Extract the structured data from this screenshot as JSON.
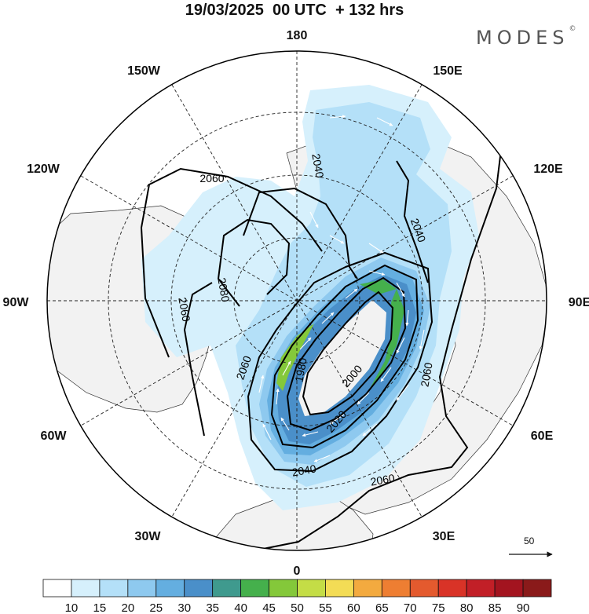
{
  "title": "19/03/2025  00 UTC  + 132 hrs",
  "brand": "MODES",
  "brand_mark": "©",
  "longitude_labels": [
    "180",
    "150E",
    "120E",
    "90E",
    "60E",
    "30E",
    "0",
    "30W",
    "60W",
    "90W",
    "120W",
    "150W"
  ],
  "contour_labels": [
    "2060",
    "2040",
    "2040",
    "2060",
    "2080",
    "1980",
    "2000",
    "2020",
    "2040",
    "2060",
    "2060",
    "2060",
    "2060"
  ],
  "vector_reference": {
    "value": "50"
  },
  "colorbar": {
    "levels": [
      "10",
      "15",
      "20",
      "25",
      "30",
      "35",
      "40",
      "45",
      "50",
      "55",
      "60",
      "65",
      "70",
      "75",
      "80",
      "85",
      "90"
    ],
    "colors": [
      "#ffffff",
      "#d6f0fc",
      "#b4e0f8",
      "#8ec9ef",
      "#64aee0",
      "#4a8fc9",
      "#3f9a8e",
      "#45b04c",
      "#84c83a",
      "#c4dd46",
      "#f3dc55",
      "#f3aa3f",
      "#ee7e32",
      "#e45a2e",
      "#d93327",
      "#c21f27",
      "#a3141f",
      "#8a1a1a"
    ]
  },
  "colors": {
    "land": "#f2f2f2",
    "ocean": "#ffffff",
    "contour": "#000000",
    "vectors": "#ffffff"
  }
}
